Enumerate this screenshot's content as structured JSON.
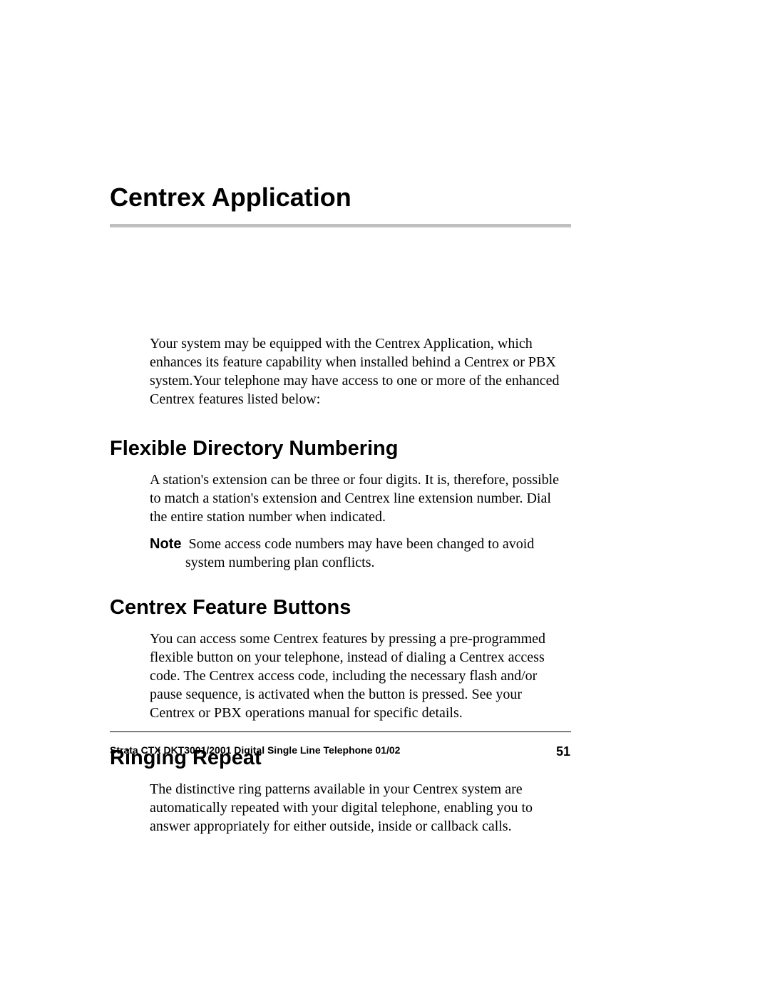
{
  "chapter": {
    "title": "Centrex Application",
    "rule_color": "#bfbfbf"
  },
  "intro": "Your system may be equipped with the Centrex Application, which enhances its feature capability when installed behind a Centrex or PBX system.Your telephone may have access to one or more of the enhanced Centrex features listed below:",
  "sections": {
    "flexible": {
      "title": "Flexible Directory Numbering",
      "body": "A station's extension can be three or four digits. It is, therefore, possible to match a station's extension and Centrex line extension number. Dial the entire station number when indicated.",
      "note_label": "Note",
      "note_text": "Some access code numbers may have been changed to avoid system numbering plan conflicts."
    },
    "buttons": {
      "title": "Centrex Feature Buttons",
      "body": "You can access some Centrex features by pressing a pre-programmed flexible button on your telephone, instead of dialing a Centrex access code. The Centrex access code, including the necessary flash and/or pause sequence, is activated when the button is pressed. See your Centrex or PBX operations manual for specific details."
    },
    "ringing": {
      "title": "Ringing Repeat",
      "body": "The distinctive ring patterns available in your Centrex system are automatically repeated with your digital telephone, enabling you to answer appropriately for either outside, inside or callback calls."
    }
  },
  "footer": {
    "text": "Strata CTX DKT3001/2001 Digital Single Line Telephone   01/02",
    "page": "51"
  },
  "styling": {
    "title_font": "Arial",
    "body_font": "Times New Roman",
    "chapter_title_size": 36,
    "section_title_size": 29,
    "body_size": 20,
    "footer_size": 14,
    "page_number_size": 18,
    "text_color": "#000000",
    "background_color": "#ffffff"
  }
}
